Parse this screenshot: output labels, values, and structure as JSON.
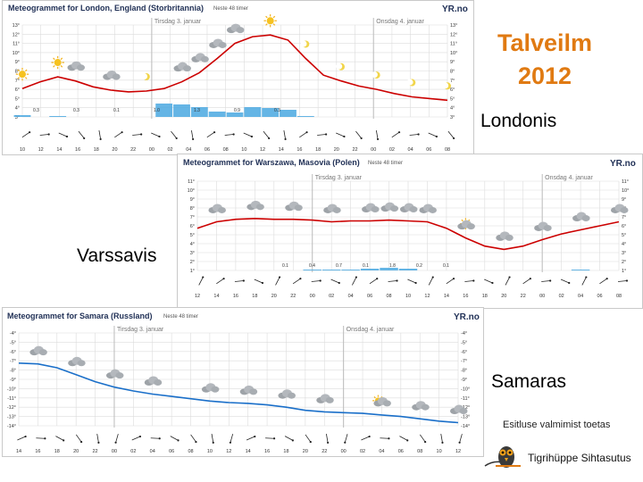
{
  "slide": {
    "title": "Talveilm 2012",
    "city_london": "Londonis",
    "city_warsaw": "Varssavis",
    "city_samara": "Samaras",
    "note": "Esitluse valmimist toetas",
    "org": "Tigrihüppe Sihtasutus"
  },
  "colors": {
    "accent": "#e07a12",
    "temp_london": "#cc0000",
    "temp_warsaw": "#cc0000",
    "temp_samara": "#1a6fc9",
    "precip": "#4aa8e0",
    "grid": "#dcdcdc",
    "day_divider": "#bbbbbb"
  },
  "chart_data": [
    {
      "type": "line",
      "title": "Meteogrammet for London, England (Storbritannia)",
      "subtitle": "Neste 48 timer",
      "brand": "YR.no",
      "day_labels": [
        "Tirsdag 3. januar",
        "Onsdag 4. januar"
      ],
      "ylim": [
        2,
        13
      ],
      "y_ticks": [
        "13°",
        "12°",
        "11°",
        "10°",
        "9°",
        "8°",
        "7°",
        "6°",
        "5°",
        "4°",
        "3°"
      ],
      "x_ticks": [
        "10",
        "12",
        "14",
        "16",
        "18",
        "20",
        "22",
        "00",
        "02",
        "04",
        "06",
        "08",
        "10",
        "12",
        "14",
        "16",
        "18",
        "20",
        "22",
        "00",
        "02",
        "04",
        "06",
        "08"
      ],
      "series": [
        {
          "name": "Temperatur",
          "color": "#cc0000",
          "values": [
            5.4,
            6.2,
            6.8,
            6.3,
            5.6,
            5.2,
            5.0,
            5.1,
            5.4,
            6.2,
            7.3,
            9.0,
            10.8,
            11.6,
            11.8,
            11.2,
            9.0,
            7.0,
            6.3,
            5.7,
            5.3,
            4.8,
            4.4,
            4.2,
            4.0
          ]
        }
      ],
      "precip": [
        0.2,
        0,
        0.1,
        0,
        0,
        0,
        0,
        0,
        1.5,
        1.4,
        1.1,
        0.6,
        0.5,
        1.1,
        1.0,
        0.8,
        0.1,
        0,
        0,
        0,
        0,
        0,
        0,
        0,
        0
      ],
      "precip_labels": [
        "0.3",
        "0.3",
        "0.1",
        "1.0",
        "1.3",
        "0.9",
        "0.3"
      ],
      "icon_labels": [
        "0.3",
        "0.1",
        "1.3",
        "1.6"
      ]
    },
    {
      "type": "line",
      "title": "Meteogrammet for Warszawa, Masovia (Polen)",
      "subtitle": "Neste 48 timer",
      "brand": "YR.no",
      "day_labels": [
        "Tirsdag 3. januar",
        "Onsdag 4. januar"
      ],
      "ylim": [
        0,
        11
      ],
      "y_ticks": [
        "11°",
        "10°",
        "9°",
        "8°",
        "7°",
        "6°",
        "5°",
        "4°",
        "3°",
        "2°",
        "1°"
      ],
      "x_ticks": [
        "12",
        "14",
        "16",
        "18",
        "20",
        "22",
        "00",
        "02",
        "04",
        "06",
        "08",
        "10",
        "12",
        "14",
        "16",
        "18",
        "20",
        "22",
        "00",
        "02",
        "04",
        "06",
        "08"
      ],
      "series": [
        {
          "name": "Temperatur",
          "color": "#cc0000",
          "values": [
            5.2,
            6.0,
            6.3,
            6.4,
            6.3,
            6.3,
            6.2,
            6.0,
            6.1,
            6.1,
            6.2,
            6.1,
            6.0,
            5.2,
            4.0,
            3.0,
            2.6,
            3.0,
            3.8,
            4.5,
            5.0,
            5.5,
            6.0
          ]
        }
      ],
      "precip": [
        0,
        0,
        0,
        0,
        0,
        0,
        0.1,
        0.1,
        0.1,
        0.2,
        0.3,
        0.2,
        0,
        0,
        0,
        0,
        0,
        0,
        0,
        0,
        0.1,
        0,
        0
      ],
      "precip_labels": [
        "0.1",
        "0.4",
        "0.7",
        "0.1",
        "1.8",
        "0.2",
        "0.1"
      ],
      "icon_labels": [
        "0.3",
        "0.3",
        "0.3",
        "0.3",
        "0.4"
      ]
    },
    {
      "type": "line",
      "title": "Meteogrammet for Samara (Russland)",
      "subtitle": "Neste 48 timer",
      "brand": "YR.no",
      "day_labels": [
        "Tirsdag 3. januar",
        "Onsdag 4. januar"
      ],
      "ylim": [
        -15,
        -3
      ],
      "y_ticks": [
        "-4°",
        "-5°",
        "-6°",
        "-7°",
        "-8°",
        "-9°",
        "-10°",
        "-11°",
        "-12°",
        "-13°",
        "-14°"
      ],
      "x_ticks": [
        "14",
        "16",
        "18",
        "20",
        "22",
        "00",
        "02",
        "04",
        "06",
        "08",
        "10",
        "12",
        "14",
        "16",
        "18",
        "20",
        "22",
        "00",
        "02",
        "04",
        "06",
        "08",
        "10",
        "12"
      ],
      "series": [
        {
          "name": "Temperatur",
          "color": "#1a6fc9",
          "values": [
            -6.9,
            -7.0,
            -7.5,
            -8.4,
            -9.3,
            -10.0,
            -10.5,
            -10.9,
            -11.2,
            -11.5,
            -11.8,
            -12.0,
            -12.1,
            -12.3,
            -12.6,
            -13.0,
            -13.2,
            -13.3,
            -13.4,
            -13.6,
            -13.8,
            -14.1,
            -14.4,
            -14.6
          ]
        }
      ],
      "icon_labels": []
    }
  ]
}
